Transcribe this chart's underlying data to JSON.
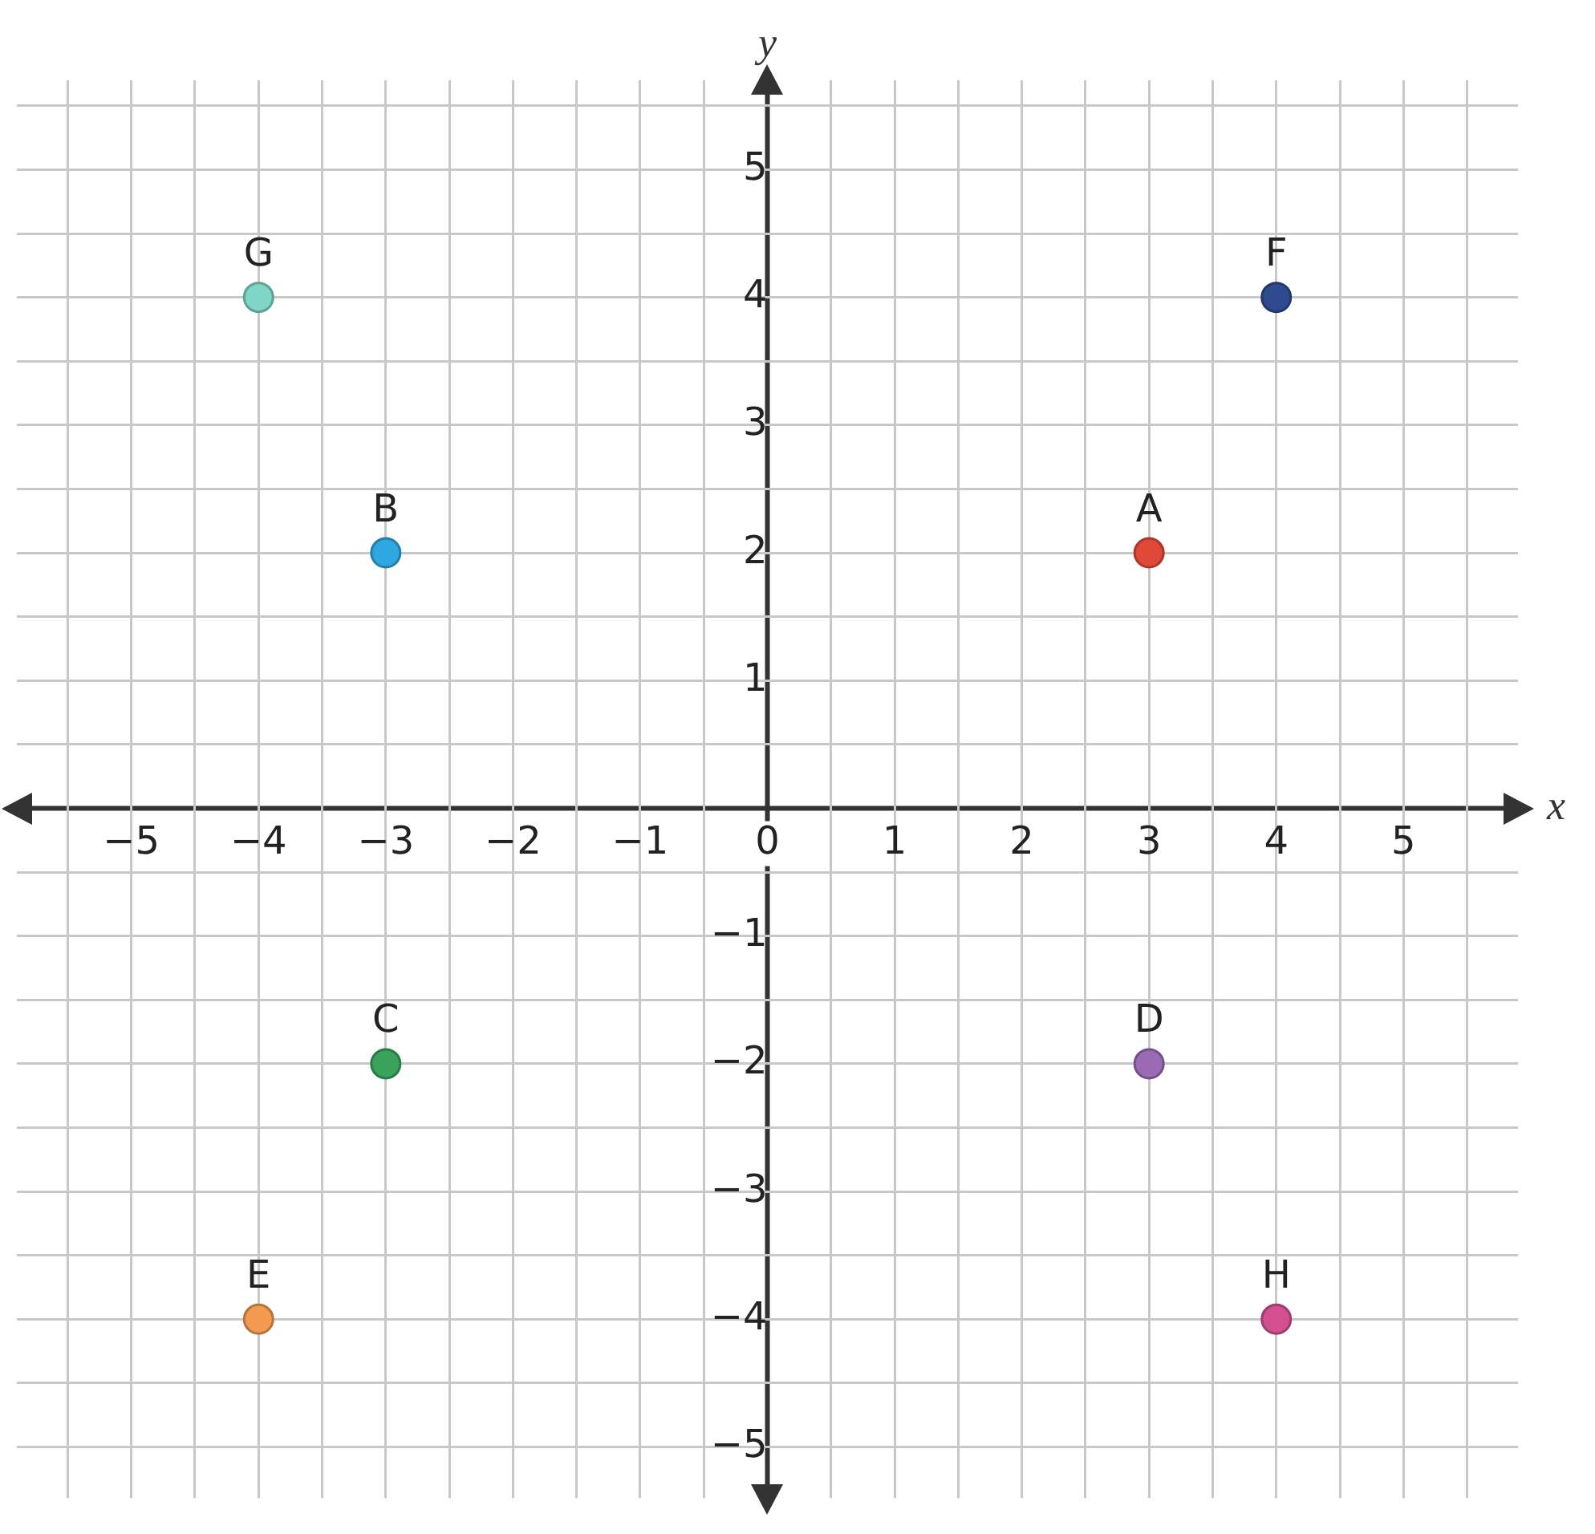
{
  "chart_data": {
    "type": "scatter",
    "xlabel": "x",
    "ylabel": "y",
    "x": [
      3,
      -3,
      -3,
      3,
      -4,
      4,
      -4,
      4
    ],
    "values": [
      2,
      2,
      -2,
      -2,
      -4,
      4,
      4,
      -4
    ],
    "colors": [
      "#e0493a",
      "#2ea8e0",
      "#3aa35a",
      "#9b6bb5",
      "#f29a50",
      "#2f4a8f",
      "#7fd6c6",
      "#d2508f"
    ],
    "xlim": [
      -5.9,
      5.9
    ],
    "ylim": [
      -5.4,
      5.7
    ],
    "xticks": [
      -5,
      {
        "value": -4.5,
        "label": null
      },
      -4,
      {
        "value": -3.5,
        "label": null
      },
      -3,
      {
        "value": -2.5,
        "label": null
      },
      -2,
      {
        "value": -1.5,
        "label": null
      },
      -1,
      {
        "value": -0.5,
        "label": null
      },
      0,
      {
        "value": 0.5,
        "label": null
      },
      1,
      {
        "value": 1.5,
        "label": null
      },
      2,
      {
        "value": 2.5,
        "label": null
      },
      3,
      {
        "value": 3.5,
        "label": null
      },
      4,
      {
        "value": 4.5,
        "label": null
      },
      5,
      {
        "value": 5.5,
        "label": null
      },
      {
        "value": -5.5,
        "label": null
      }
    ],
    "yticks": [
      {
        "value": -5,
        "label": "−5"
      },
      {
        "value": -4.5,
        "label": null
      },
      {
        "value": -4,
        "label": "−4"
      },
      {
        "value": -3.5,
        "label": null
      },
      {
        "value": -3,
        "label": "−3"
      },
      {
        "value": -2.5,
        "label": null
      },
      {
        "value": -2,
        "label": "−2"
      },
      {
        "value": -1.5,
        "label": null
      },
      {
        "value": -1,
        "label": "−1"
      },
      {
        "value": -0.5,
        "label": null
      },
      {
        "value": 0,
        "label": null
      },
      {
        "value": 0.5,
        "label": null
      },
      1,
      {
        "value": 1.5,
        "label": null
      },
      2,
      {
        "value": 2.5,
        "label": null
      },
      3,
      {
        "value": 3.5,
        "label": null
      },
      4,
      {
        "value": 4.5,
        "label": null
      },
      5,
      {
        "value": 5.5,
        "label": null
      }
    ],
    "grid": true,
    "marker": "circle",
    "legend": false,
    "annotations": [
      {
        "text": "A",
        "x": 3,
        "y": 2
      },
      {
        "text": "B",
        "x": -3,
        "y": 2
      },
      {
        "text": "C",
        "x": -3,
        "y": -2
      },
      {
        "text": "D",
        "x": 3,
        "y": -2
      },
      {
        "text": "E",
        "x": -4,
        "y": -4
      },
      {
        "text": "F",
        "x": 4,
        "y": 4
      },
      {
        "text": "G",
        "x": -4,
        "y": 4
      },
      {
        "text": "H",
        "x": 4,
        "y": -4
      }
    ]
  }
}
